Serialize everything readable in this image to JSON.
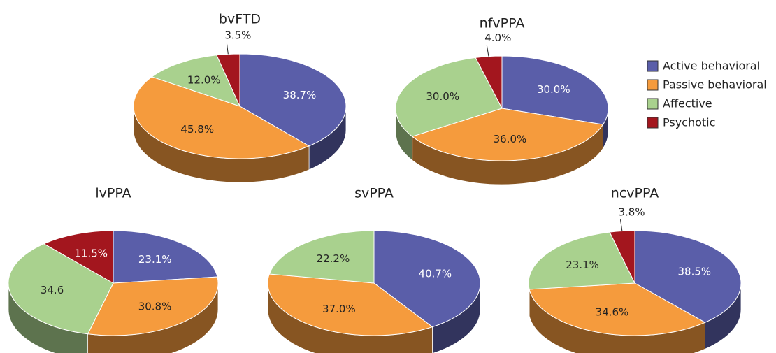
{
  "legend": {
    "labels": [
      "Active behavioral",
      "Passive behavioral",
      "Affective",
      "Psychotic"
    ],
    "colors": [
      "#5a5ea9",
      "#f59b3d",
      "#a9d18e",
      "#a3161e"
    ]
  },
  "chart_data": [
    {
      "type": "pie",
      "title": "bvFTD",
      "values": [
        38.7,
        45.8,
        12.0,
        3.5
      ],
      "value_labels": [
        "38.7%",
        "45.8%",
        "12.0%",
        "3.5%"
      ]
    },
    {
      "type": "pie",
      "title": "nfvPPA",
      "values": [
        30.0,
        36.0,
        30.0,
        4.0
      ],
      "value_labels": [
        "30.0%",
        "36.0%",
        "30.0%",
        "4.0%"
      ]
    },
    {
      "type": "pie",
      "title": "lvPPA",
      "values": [
        23.1,
        30.8,
        34.6,
        11.5
      ],
      "value_labels": [
        "23.1%",
        "30.8%",
        "34.6",
        "11.5%"
      ]
    },
    {
      "type": "pie",
      "title": "svPPA",
      "values": [
        40.7,
        37.0,
        22.2,
        null
      ],
      "value_labels": [
        "40.7%",
        "37.0%",
        "22.2%",
        null
      ]
    },
    {
      "type": "pie",
      "title": "ncvPPA",
      "values": [
        38.5,
        34.6,
        23.1,
        3.8
      ],
      "value_labels": [
        "38.5%",
        "34.6%",
        "23.1%",
        "3.8%"
      ]
    }
  ]
}
